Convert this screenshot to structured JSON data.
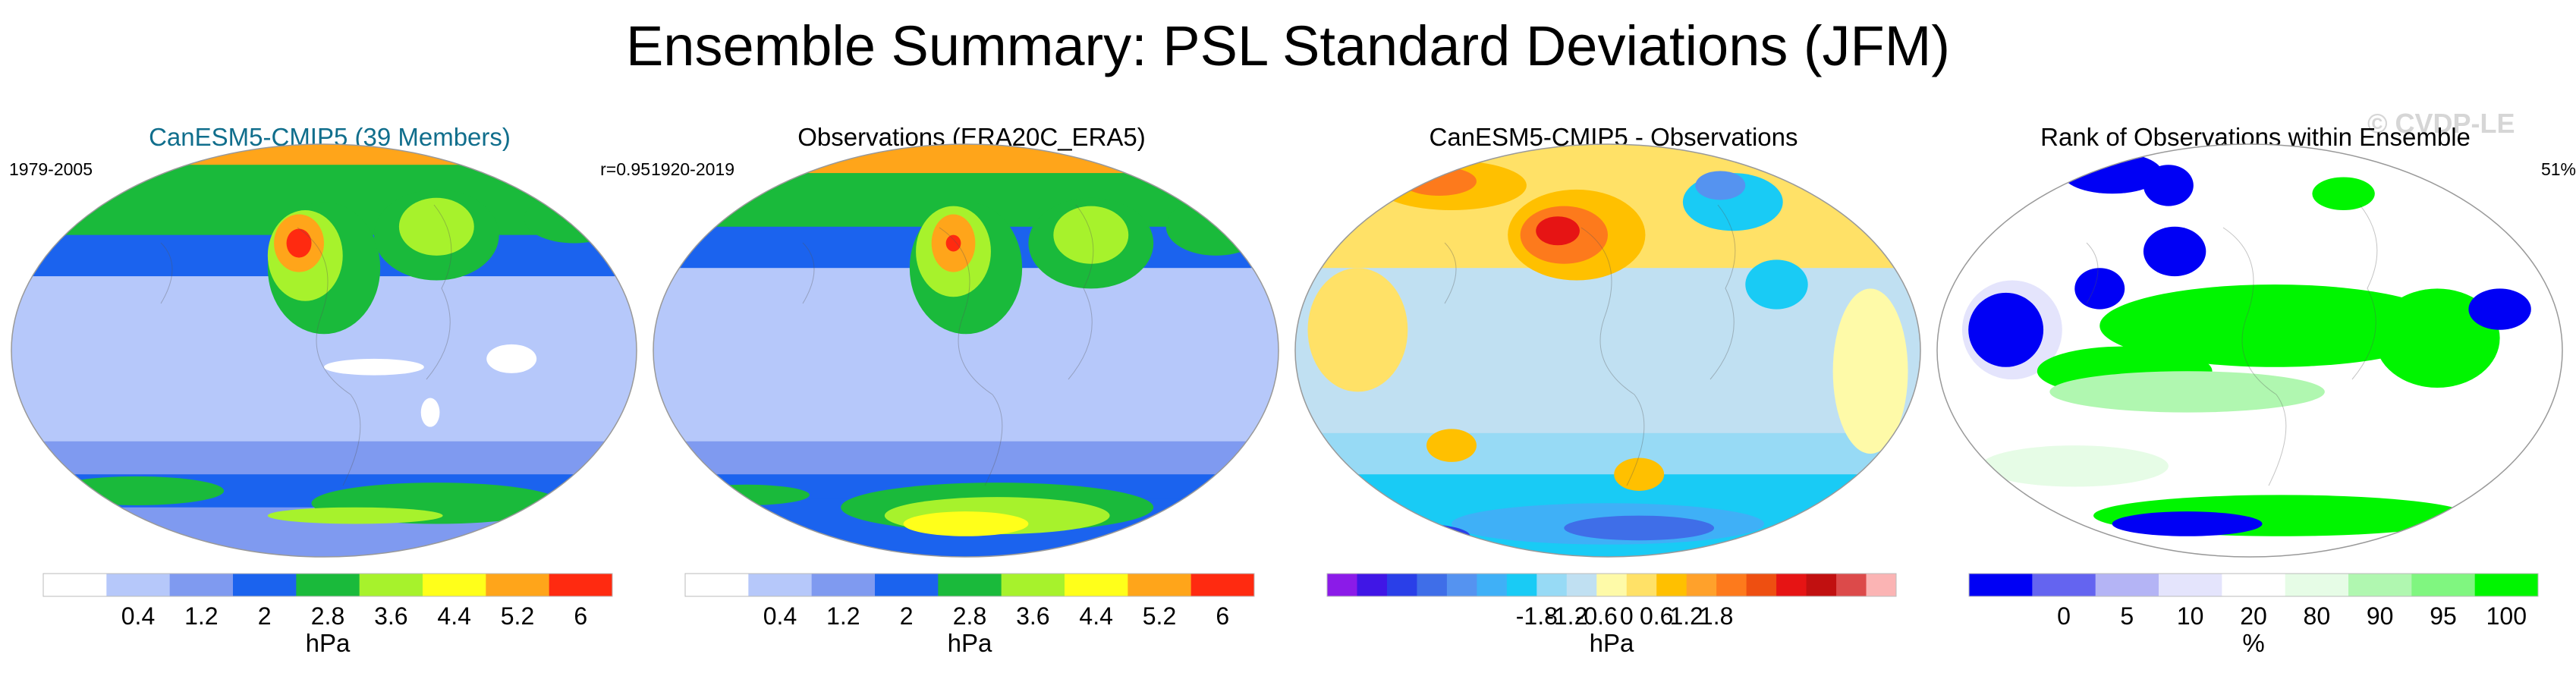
{
  "title": "Ensemble Summary: PSL Standard Deviations (JFM)",
  "watermark": "© CVDP-LE",
  "chart_data": [
    {
      "type": "heatmap",
      "title": "CanESM5-CMIP5 (39 Members)",
      "period": "1979-2005",
      "stat": "r=0.95",
      "units": "hPa",
      "colorbar": {
        "colors": [
          "#ffffff",
          "#b6c8fa",
          "#7f9af0",
          "#1b63ee",
          "#1aba3b",
          "#a7f22c",
          "#ffff1a",
          "#ffa51a",
          "#ff2a10"
        ],
        "ticks": [
          "0.4",
          "1.2",
          "2",
          "2.8",
          "3.6",
          "4.4",
          "5.2",
          "6"
        ]
      },
      "features": [
        {
          "cx": 0.5,
          "cy": 0.3,
          "rx": 0.09,
          "ry": 0.16,
          "c": 4
        },
        {
          "cx": 0.47,
          "cy": 0.27,
          "rx": 0.06,
          "ry": 0.11,
          "c": 5
        },
        {
          "cx": 0.46,
          "cy": 0.24,
          "rx": 0.04,
          "ry": 0.07,
          "c": 7
        },
        {
          "cx": 0.46,
          "cy": 0.24,
          "rx": 0.02,
          "ry": 0.035,
          "c": 8
        },
        {
          "cx": 0.68,
          "cy": 0.22,
          "rx": 0.1,
          "ry": 0.11,
          "c": 4
        },
        {
          "cx": 0.68,
          "cy": 0.2,
          "rx": 0.06,
          "ry": 0.07,
          "c": 5
        },
        {
          "cx": 0.9,
          "cy": 0.18,
          "rx": 0.08,
          "ry": 0.06,
          "c": 4
        },
        {
          "cx": 0.58,
          "cy": 0.54,
          "rx": 0.08,
          "ry": 0.02,
          "c": 0
        },
        {
          "cx": 0.8,
          "cy": 0.52,
          "rx": 0.04,
          "ry": 0.035,
          "c": 0
        },
        {
          "cx": 0.67,
          "cy": 0.65,
          "rx": 0.015,
          "ry": 0.035,
          "c": 0
        },
        {
          "cx": 0.2,
          "cy": 0.84,
          "rx": 0.14,
          "ry": 0.035,
          "c": 4
        },
        {
          "cx": 0.68,
          "cy": 0.87,
          "rx": 0.2,
          "ry": 0.05,
          "c": 4
        },
        {
          "cx": 0.55,
          "cy": 0.9,
          "rx": 0.14,
          "ry": 0.02,
          "c": 5
        }
      ]
    },
    {
      "type": "heatmap",
      "title": "Observations (ERA20C_ERA5)",
      "period": "1920-2019",
      "stat": "",
      "units": "hPa",
      "colorbar": {
        "colors": [
          "#ffffff",
          "#b6c8fa",
          "#7f9af0",
          "#1b63ee",
          "#1aba3b",
          "#a7f22c",
          "#ffff1a",
          "#ffa51a",
          "#ff2a10"
        ],
        "ticks": [
          "0.4",
          "1.2",
          "2",
          "2.8",
          "3.6",
          "4.4",
          "5.2",
          "6"
        ]
      },
      "features": [
        {
          "cx": 0.5,
          "cy": 0.3,
          "rx": 0.09,
          "ry": 0.16,
          "c": 4
        },
        {
          "cx": 0.48,
          "cy": 0.26,
          "rx": 0.06,
          "ry": 0.11,
          "c": 5
        },
        {
          "cx": 0.48,
          "cy": 0.24,
          "rx": 0.035,
          "ry": 0.07,
          "c": 7
        },
        {
          "cx": 0.48,
          "cy": 0.24,
          "rx": 0.012,
          "ry": 0.02,
          "c": 8
        },
        {
          "cx": 0.7,
          "cy": 0.24,
          "rx": 0.1,
          "ry": 0.11,
          "c": 4
        },
        {
          "cx": 0.7,
          "cy": 0.22,
          "rx": 0.06,
          "ry": 0.07,
          "c": 5
        },
        {
          "cx": 0.9,
          "cy": 0.2,
          "rx": 0.08,
          "ry": 0.07,
          "c": 4
        },
        {
          "cx": 0.55,
          "cy": 0.88,
          "rx": 0.25,
          "ry": 0.06,
          "c": 4
        },
        {
          "cx": 0.55,
          "cy": 0.9,
          "rx": 0.18,
          "ry": 0.045,
          "c": 5
        },
        {
          "cx": 0.5,
          "cy": 0.92,
          "rx": 0.1,
          "ry": 0.03,
          "c": 6
        },
        {
          "cx": 0.15,
          "cy": 0.85,
          "rx": 0.1,
          "ry": 0.025,
          "c": 4
        }
      ]
    },
    {
      "type": "heatmap",
      "title": "CanESM5-CMIP5 - Observations",
      "period": "",
      "stat": "",
      "units": "hPa",
      "colorbar": {
        "colors": [
          "#8b1be8",
          "#4016e6",
          "#2a3fe8",
          "#3f6ee8",
          "#5593f0",
          "#3fb0f7",
          "#19cbf5",
          "#97daf5",
          "#c0e0f2",
          "#fefaa8",
          "#ffe167",
          "#ffc000",
          "#ffa12b",
          "#fd7a1c",
          "#ee4f11",
          "#e61414",
          "#c11010",
          "#dc4a4a",
          "#fbb4b4"
        ],
        "ticks": [
          "-1.8",
          "-1.2",
          "-0.6",
          "0",
          "0.6",
          "1.2",
          "1.8"
        ]
      },
      "features": [
        {
          "cx": 0.5,
          "cy": 0.5,
          "rx": 0.35,
          "ry": 0.18,
          "c": 8
        },
        {
          "cx": 0.45,
          "cy": 0.22,
          "rx": 0.11,
          "ry": 0.11,
          "c": 11
        },
        {
          "cx": 0.43,
          "cy": 0.22,
          "rx": 0.07,
          "ry": 0.07,
          "c": 13
        },
        {
          "cx": 0.42,
          "cy": 0.21,
          "rx": 0.035,
          "ry": 0.035,
          "c": 15
        },
        {
          "cx": 0.25,
          "cy": 0.1,
          "rx": 0.12,
          "ry": 0.06,
          "c": 11
        },
        {
          "cx": 0.23,
          "cy": 0.09,
          "rx": 0.06,
          "ry": 0.035,
          "c": 13
        },
        {
          "cx": 0.7,
          "cy": 0.14,
          "rx": 0.08,
          "ry": 0.07,
          "c": 6
        },
        {
          "cx": 0.68,
          "cy": 0.1,
          "rx": 0.04,
          "ry": 0.035,
          "c": 4
        },
        {
          "cx": 0.77,
          "cy": 0.34,
          "rx": 0.05,
          "ry": 0.06,
          "c": 6
        },
        {
          "cx": 0.1,
          "cy": 0.45,
          "rx": 0.08,
          "ry": 0.15,
          "c": 10
        },
        {
          "cx": 0.92,
          "cy": 0.55,
          "rx": 0.06,
          "ry": 0.2,
          "c": 9
        },
        {
          "cx": 0.25,
          "cy": 0.73,
          "rx": 0.04,
          "ry": 0.04,
          "c": 11
        },
        {
          "cx": 0.55,
          "cy": 0.8,
          "rx": 0.04,
          "ry": 0.04,
          "c": 11
        },
        {
          "cx": 0.5,
          "cy": 0.92,
          "rx": 0.25,
          "ry": 0.05,
          "c": 5
        },
        {
          "cx": 0.55,
          "cy": 0.93,
          "rx": 0.12,
          "ry": 0.03,
          "c": 3
        },
        {
          "cx": 0.2,
          "cy": 0.95,
          "rx": 0.08,
          "ry": 0.03,
          "c": 2
        }
      ]
    },
    {
      "type": "heatmap",
      "title": "Rank of Observations within Ensemble",
      "period": "",
      "stat": "51%",
      "units": "%",
      "colorbar": {
        "colors": [
          "#0000f5",
          "#6464f0",
          "#b4b4f5",
          "#e4e4fc",
          "#ffffff",
          "#e6fce6",
          "#b0f7b0",
          "#80f680",
          "#00f500"
        ],
        "ticks": [
          "0",
          "5",
          "10",
          "20",
          "80",
          "90",
          "95",
          "100"
        ]
      },
      "features": [
        {
          "cx": 0.12,
          "cy": 0.45,
          "rx": 0.08,
          "ry": 0.12,
          "c": 3
        },
        {
          "cx": 0.11,
          "cy": 0.45,
          "rx": 0.06,
          "ry": 0.09,
          "c": 0
        },
        {
          "cx": 0.28,
          "cy": 0.07,
          "rx": 0.08,
          "ry": 0.05,
          "c": 0
        },
        {
          "cx": 0.37,
          "cy": 0.1,
          "rx": 0.04,
          "ry": 0.05,
          "c": 0
        },
        {
          "cx": 0.38,
          "cy": 0.26,
          "rx": 0.05,
          "ry": 0.06,
          "c": 0
        },
        {
          "cx": 0.26,
          "cy": 0.35,
          "rx": 0.04,
          "ry": 0.05,
          "c": 0
        },
        {
          "cx": 0.65,
          "cy": 0.12,
          "rx": 0.05,
          "ry": 0.04,
          "c": 8
        },
        {
          "cx": 0.54,
          "cy": 0.44,
          "rx": 0.28,
          "ry": 0.1,
          "c": 8
        },
        {
          "cx": 0.8,
          "cy": 0.47,
          "rx": 0.1,
          "ry": 0.12,
          "c": 8
        },
        {
          "cx": 0.3,
          "cy": 0.55,
          "rx": 0.14,
          "ry": 0.06,
          "c": 8
        },
        {
          "cx": 0.4,
          "cy": 0.6,
          "rx": 0.22,
          "ry": 0.05,
          "c": 6
        },
        {
          "cx": 0.22,
          "cy": 0.78,
          "rx": 0.15,
          "ry": 0.05,
          "c": 5
        },
        {
          "cx": 0.55,
          "cy": 0.9,
          "rx": 0.3,
          "ry": 0.05,
          "c": 8
        },
        {
          "cx": 0.4,
          "cy": 0.92,
          "rx": 0.12,
          "ry": 0.03,
          "c": 0
        },
        {
          "cx": 0.9,
          "cy": 0.4,
          "rx": 0.05,
          "ry": 0.05,
          "c": 0
        }
      ]
    }
  ]
}
